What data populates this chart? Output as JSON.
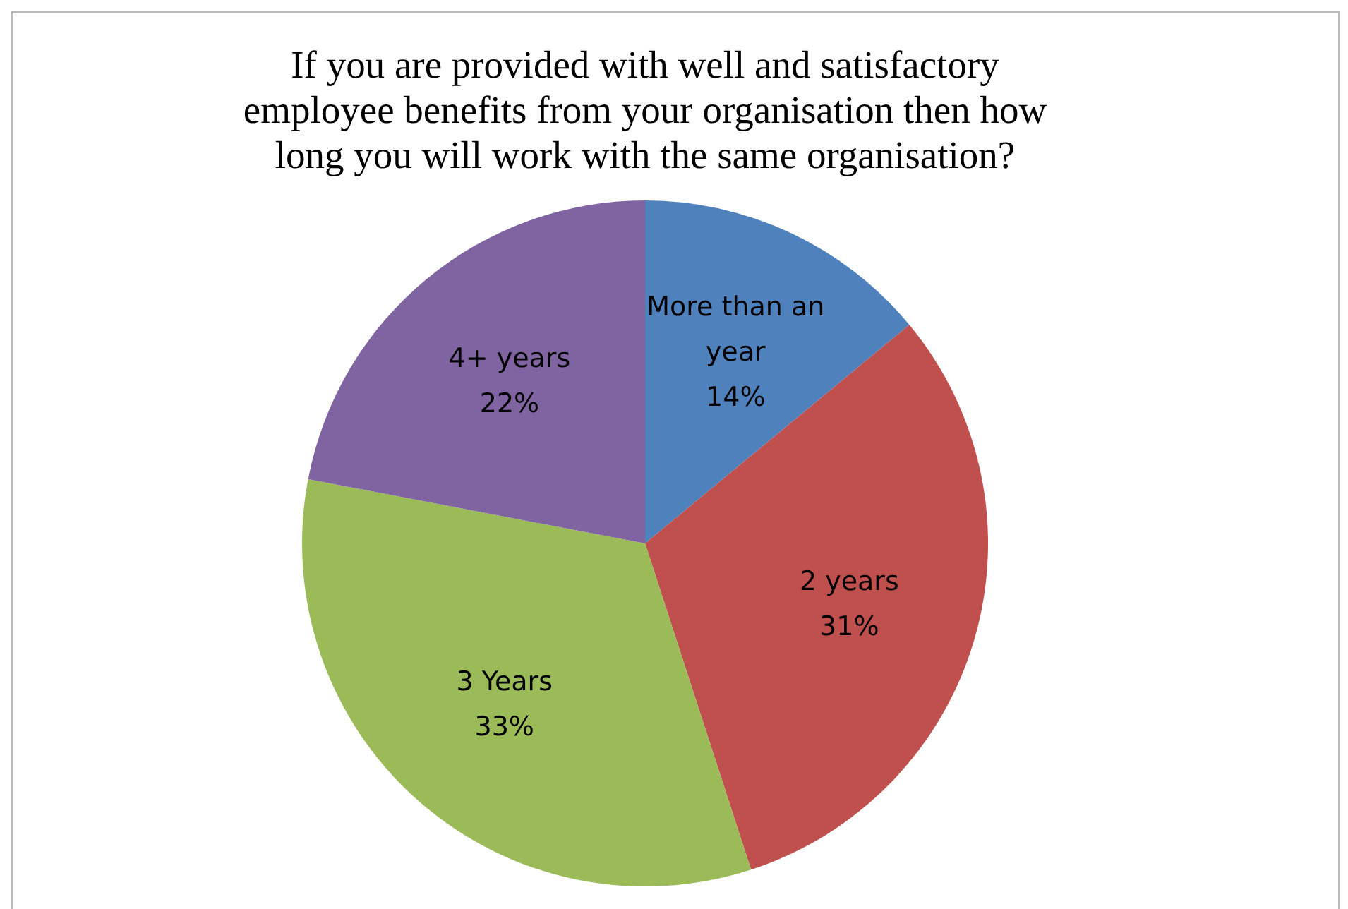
{
  "chart_data": {
    "type": "pie",
    "title": "If you are provided with well and satisfactory employee benefits from your organisation then how long you will work with the same organisation?",
    "categories": [
      "More than an year",
      "2 years",
      "3 Years",
      "4+ years"
    ],
    "values": [
      14,
      31,
      33,
      22
    ],
    "value_labels": [
      "14%",
      "31%",
      "33%",
      "22%"
    ],
    "colors": [
      "#4f81bd",
      "#c0504d",
      "#9bbb59",
      "#8064a2"
    ],
    "legend": false
  }
}
